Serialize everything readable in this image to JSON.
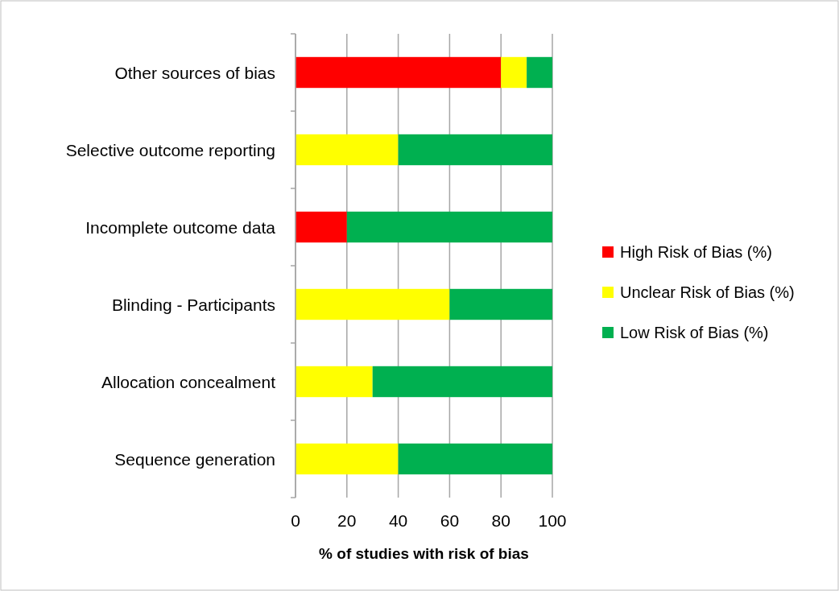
{
  "chart_data": {
    "type": "bar",
    "orientation": "horizontal",
    "stacked": true,
    "xlabel": "% of studies with risk of bias",
    "categories": [
      "Other sources of bias",
      "Selective outcome reporting",
      "Incomplete outcome data",
      "Blinding - Participants",
      "Allocation concealment",
      "Sequence generation"
    ],
    "series": [
      {
        "name": "High Risk of Bias (%)",
        "color": "#ff0000",
        "values": [
          80,
          0,
          20,
          0,
          0,
          0
        ]
      },
      {
        "name": "Unclear Risk of Bias (%)",
        "color": "#ffff00",
        "values": [
          10,
          40,
          0,
          60,
          30,
          40
        ]
      },
      {
        "name": "Low Risk of Bias (%)",
        "color": "#00b050",
        "values": [
          10,
          60,
          80,
          40,
          70,
          60
        ]
      }
    ],
    "xlim": [
      0,
      100
    ],
    "xticks": [
      0,
      20,
      40,
      60,
      80,
      100
    ],
    "grid": "x",
    "legend": "right"
  }
}
